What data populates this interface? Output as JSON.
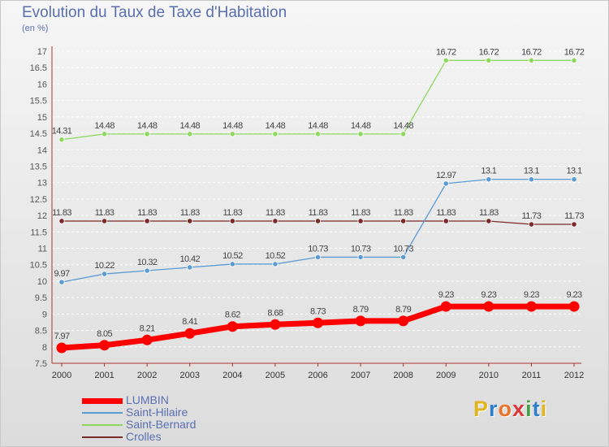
{
  "title": "Evolution du Taux de Taxe d'Habitation",
  "subtitle": "(en %)",
  "brand": {
    "text": "Proxiti",
    "letters": [
      {
        "ch": "P",
        "color": "#e2b41e"
      },
      {
        "ch": "r",
        "color": "#2f7fc8"
      },
      {
        "ch": "o",
        "color": "#e8742a"
      },
      {
        "ch": "x",
        "color": "#d8383a"
      },
      {
        "ch": "i",
        "color": "#43a047"
      },
      {
        "ch": "t",
        "color": "#2f7fc8"
      },
      {
        "ch": "i",
        "color": "#e2b41e"
      }
    ]
  },
  "chart_data": {
    "type": "line",
    "title": "Evolution du Taux de Taxe d'Habitation",
    "subtitle": "(en %)",
    "xlabel": "",
    "ylabel": "",
    "x": [
      "2000",
      "2001",
      "2002",
      "2003",
      "2004",
      "2005",
      "2006",
      "2007",
      "2008",
      "2009",
      "2010",
      "2011",
      "2012"
    ],
    "ylim": [
      7.5,
      17
    ],
    "yticks": [
      "7.5",
      "8",
      "8.5",
      "9",
      "9.5",
      "10",
      "10.5",
      "11",
      "11.5",
      "12",
      "12.5",
      "13",
      "13.5",
      "14",
      "14.5",
      "15",
      "15.5",
      "16",
      "16.5",
      "17"
    ],
    "grid": true,
    "legend_position": "bottom-left",
    "series": [
      {
        "name": "LUMBIN",
        "color": "#ff0000",
        "values": [
          7.97,
          8.05,
          8.21,
          8.41,
          8.62,
          8.68,
          8.73,
          8.79,
          8.79,
          9.23,
          9.23,
          9.23,
          9.23
        ],
        "labels": [
          "7.97",
          "8.05",
          "8.21",
          "8.41",
          "8.62",
          "8.68",
          "8.73",
          "8.79",
          "8.79",
          "9.23",
          "9.23",
          "9.23",
          "9.23"
        ]
      },
      {
        "name": "Saint-Hilaire",
        "color": "#5b9bd5",
        "values": [
          9.97,
          10.22,
          10.32,
          10.42,
          10.52,
          10.52,
          10.73,
          10.73,
          10.73,
          12.97,
          13.1,
          13.1,
          13.1
        ],
        "labels": [
          "9.97",
          "10.22",
          "10.32",
          "10.42",
          "10.52",
          "10.52",
          "10.73",
          "10.73",
          "10.73",
          "12.97",
          "13.1",
          "13.1",
          "13.1"
        ]
      },
      {
        "name": "Saint-Bernard",
        "color": "#8ed860",
        "values": [
          14.31,
          14.48,
          14.48,
          14.48,
          14.48,
          14.48,
          14.48,
          14.48,
          14.48,
          16.72,
          16.72,
          16.72,
          16.72
        ],
        "labels": [
          "14.31",
          "14.48",
          "14.48",
          "14.48",
          "14.48",
          "14.48",
          "14.48",
          "14.48",
          "14.48",
          "16.72",
          "16.72",
          "16.72",
          "16.72"
        ]
      },
      {
        "name": "Crolles",
        "color": "#7b2a2a",
        "values": [
          11.83,
          11.83,
          11.83,
          11.83,
          11.83,
          11.83,
          11.83,
          11.83,
          11.83,
          11.83,
          11.83,
          11.73,
          11.73
        ],
        "labels": [
          "11.83",
          "11.83",
          "11.83",
          "11.83",
          "11.83",
          "11.83",
          "11.83",
          "11.83",
          "11.83",
          "11.83",
          "11.83",
          "11.73",
          "11.73"
        ]
      }
    ]
  }
}
